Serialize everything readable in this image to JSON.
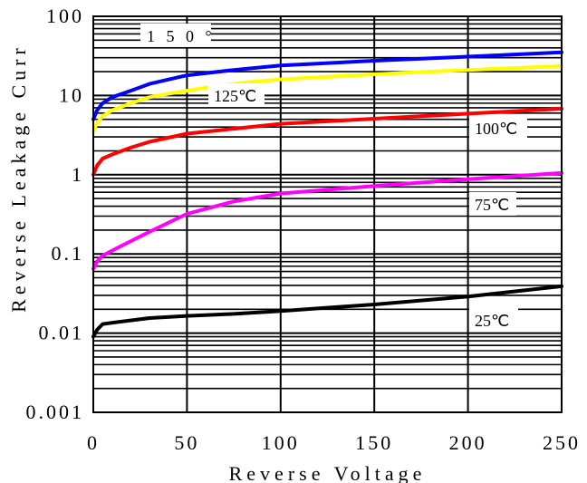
{
  "chart_data": {
    "type": "line",
    "title": "",
    "xlabel": "Reverse Voltage",
    "ylabel": "Reverse Leakage Curr",
    "xscale": "linear",
    "yscale": "log",
    "xlim": [
      0,
      250
    ],
    "ylim": [
      0.001,
      100
    ],
    "x_ticks": [
      "0",
      "50",
      "100",
      "150",
      "200",
      "250"
    ],
    "y_ticks": [
      "0.001",
      "0.01",
      "0.1",
      "1",
      "10",
      "100"
    ],
    "grid": "on",
    "legend": "none",
    "series": [
      {
        "name": "150°",
        "color": "#0000ff",
        "label_text": "1 5 0 °",
        "x": [
          0,
          2,
          5,
          10,
          20,
          30,
          50,
          75,
          100,
          150,
          200,
          250
        ],
        "y": [
          5.0,
          6.5,
          8.0,
          9.5,
          11.5,
          14.0,
          18.0,
          21.0,
          24.0,
          27.5,
          31.0,
          35.0
        ]
      },
      {
        "name": "125℃",
        "color": "#ffff00",
        "label_text": "125℃",
        "x": [
          0,
          2,
          5,
          10,
          20,
          30,
          40,
          60,
          80,
          100,
          150,
          200,
          250
        ],
        "y": [
          3.5,
          4.5,
          5.5,
          6.5,
          8.0,
          9.5,
          10.5,
          12.5,
          14.5,
          16.0,
          18.5,
          21.0,
          23.5
        ]
      },
      {
        "name": "100℃",
        "color": "#ff0000",
        "label_text": "100℃",
        "x": [
          0,
          2,
          5,
          10,
          20,
          30,
          50,
          75,
          100,
          150,
          200,
          250
        ],
        "y": [
          1.0,
          1.3,
          1.6,
          1.8,
          2.2,
          2.6,
          3.3,
          3.8,
          4.4,
          5.1,
          5.9,
          6.8
        ]
      },
      {
        "name": "75℃",
        "color": "#ff00ff",
        "label_text": "75℃",
        "x": [
          0,
          2,
          5,
          10,
          20,
          30,
          50,
          75,
          100,
          150,
          200,
          250
        ],
        "y": [
          0.065,
          0.08,
          0.095,
          0.11,
          0.145,
          0.19,
          0.32,
          0.46,
          0.58,
          0.72,
          0.88,
          1.05
        ]
      },
      {
        "name": "25℃",
        "color": "#000000",
        "label_text": "25℃",
        "x": [
          0,
          2,
          5,
          10,
          30,
          50,
          75,
          100,
          150,
          200,
          250
        ],
        "y": [
          0.009,
          0.011,
          0.013,
          0.0135,
          0.0155,
          0.0165,
          0.0175,
          0.019,
          0.023,
          0.029,
          0.039
        ]
      }
    ]
  }
}
